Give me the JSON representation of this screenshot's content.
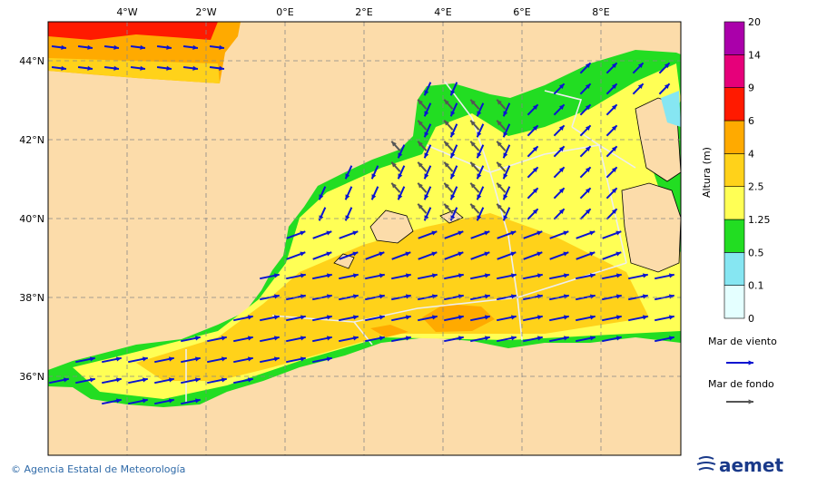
{
  "map": {
    "longitude_labels": [
      "4°W",
      "2°W",
      "0°E",
      "2°E",
      "4°E",
      "6°E",
      "8°E"
    ],
    "latitude_labels": [
      "44°N",
      "42°N",
      "40°N",
      "38°N",
      "36°N"
    ],
    "colorbar": {
      "title": "Altura (m)",
      "labels": [
        "0",
        "0.1",
        "0.5",
        "1.25",
        "2.5",
        "4",
        "6",
        "9",
        "14",
        "20"
      ],
      "colors": [
        "#e4ffff",
        "#86e6f2",
        "#22dd22",
        "#ffff55",
        "#ffd21a",
        "#ffaa00",
        "#ff1a00",
        "#e6007a",
        "#aa00aa"
      ]
    },
    "legend": [
      {
        "label": "Mar de viento",
        "color": "#0a14d0"
      },
      {
        "label": "Mar de fondo",
        "color": "#555555"
      }
    ]
  },
  "footer": {
    "credit": "© Agencia Estatal de Meteorología",
    "logo": "aemet"
  }
}
